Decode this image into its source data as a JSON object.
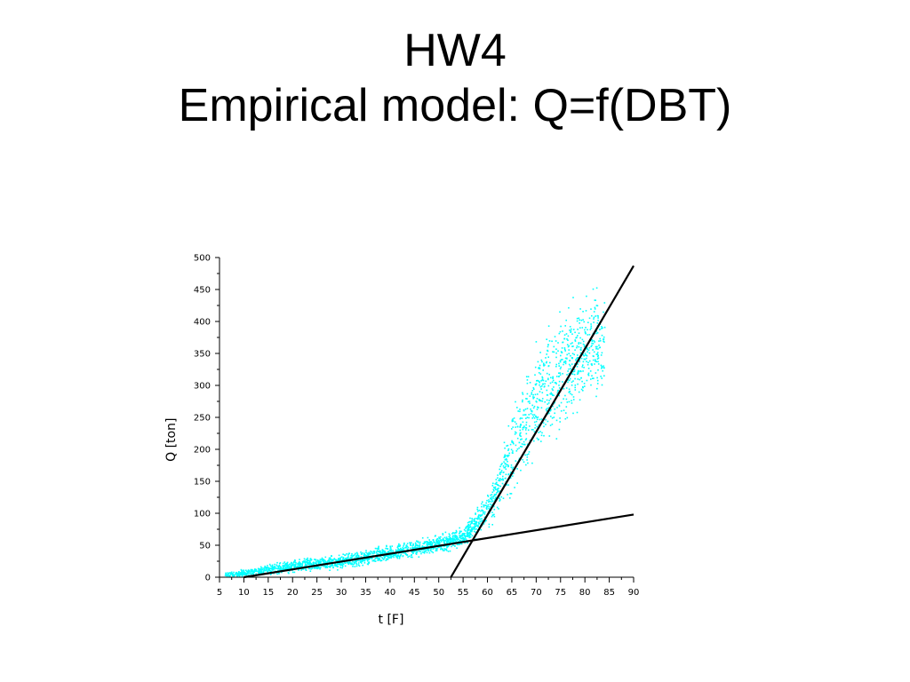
{
  "slide": {
    "title_line1": "HW4",
    "title_line2": "Empirical model: Q=f(DBT)"
  },
  "chart_data": {
    "type": "scatter",
    "xlabel": "t [F]",
    "ylabel": "Q [ton]",
    "xlim": [
      5,
      90
    ],
    "ylim": [
      0,
      500
    ],
    "x_ticks": [
      5,
      10,
      15,
      20,
      25,
      30,
      35,
      40,
      45,
      50,
      55,
      60,
      65,
      70,
      75,
      80,
      85,
      90
    ],
    "y_ticks": [
      0,
      50,
      100,
      150,
      200,
      250,
      300,
      350,
      400,
      450,
      500
    ],
    "x_tick_labels": [
      "5",
      "10",
      "15",
      "20",
      "25",
      "30",
      "35",
      "40",
      "45",
      "50",
      "55",
      "60",
      "65",
      "70",
      "75",
      "80",
      "85",
      "90"
    ],
    "y_tick_labels": [
      "0",
      "50",
      "100",
      "150",
      "200",
      "250",
      "300",
      "350",
      "400",
      "450",
      "500"
    ],
    "colors": {
      "points": "#00ffff",
      "fit_lines": "#000000",
      "axes": "#000000"
    },
    "scatter_envelope": [
      {
        "x": 6,
        "y_low": 0,
        "y_high": 10
      },
      {
        "x": 10,
        "y_low": 0,
        "y_high": 15
      },
      {
        "x": 20,
        "y_low": 5,
        "y_high": 32
      },
      {
        "x": 30,
        "y_low": 10,
        "y_high": 40
      },
      {
        "x": 40,
        "y_low": 22,
        "y_high": 55
      },
      {
        "x": 50,
        "y_low": 35,
        "y_high": 70
      },
      {
        "x": 55,
        "y_low": 45,
        "y_high": 85
      },
      {
        "x": 60,
        "y_low": 70,
        "y_high": 140
      },
      {
        "x": 65,
        "y_low": 110,
        "y_high": 280
      },
      {
        "x": 70,
        "y_low": 170,
        "y_high": 400
      },
      {
        "x": 75,
        "y_low": 210,
        "y_high": 440
      },
      {
        "x": 80,
        "y_low": 240,
        "y_high": 480
      },
      {
        "x": 84,
        "y_low": 260,
        "y_high": 470
      }
    ],
    "fit_lines": [
      {
        "x": [
          10,
          90
        ],
        "y": [
          0,
          98
        ]
      },
      {
        "x": [
          52.5,
          90
        ],
        "y": [
          0,
          487
        ]
      }
    ]
  }
}
